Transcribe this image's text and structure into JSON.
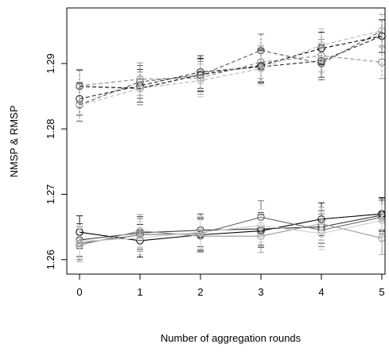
{
  "chart_data": {
    "type": "line",
    "xlabel": "Number of aggregation rounds",
    "ylabel": "NMSP & RMSP",
    "x": [
      0,
      1,
      2,
      3,
      4,
      5
    ],
    "x_ticks": [
      "0",
      "1",
      "2",
      "3",
      "4",
      "5"
    ],
    "y_ticks": [
      "1.26",
      "1.27",
      "1.28",
      "1.29"
    ],
    "y_tick_values": [
      1.26,
      1.27,
      1.28,
      1.29
    ],
    "xlim": [
      0,
      5
    ],
    "ylim": [
      1.259,
      1.2985
    ],
    "grid": false,
    "legend": "none",
    "error_bar_half_width": 0.0025,
    "series": [
      {
        "group": "upper",
        "style": "dashed",
        "color": "#000000",
        "values": [
          1.2865,
          1.2862,
          1.2883,
          1.2897,
          1.2923,
          1.2942
        ]
      },
      {
        "group": "upper",
        "style": "dashed",
        "color": "#222222",
        "values": [
          1.2846,
          1.2866,
          1.2887,
          1.2895,
          1.2904,
          1.2942
        ]
      },
      {
        "group": "upper",
        "style": "dashed",
        "color": "#555555",
        "values": [
          1.2837,
          1.2872,
          1.2882,
          1.292,
          1.29,
          1.295
        ]
      },
      {
        "group": "upper",
        "style": "dashed",
        "color": "#8c8c8c",
        "values": [
          1.2866,
          1.2876,
          1.2878,
          1.2902,
          1.2912,
          1.2902
        ]
      },
      {
        "group": "upper",
        "style": "dashed",
        "color": "#b8b8b8",
        "values": [
          1.2836,
          1.2862,
          1.2874,
          1.2892,
          1.2928,
          1.295
        ]
      },
      {
        "group": "lower",
        "style": "solid",
        "color": "#000000",
        "values": [
          1.2642,
          1.2629,
          1.2638,
          1.2644,
          1.2662,
          1.267
        ]
      },
      {
        "group": "lower",
        "style": "solid",
        "color": "#333333",
        "values": [
          1.263,
          1.2641,
          1.2645,
          1.2647,
          1.265,
          1.2668
        ]
      },
      {
        "group": "lower",
        "style": "solid",
        "color": "#666666",
        "values": [
          1.2625,
          1.2638,
          1.264,
          1.2665,
          1.2645,
          1.2665
        ]
      },
      {
        "group": "lower",
        "style": "solid",
        "color": "#999999",
        "values": [
          1.2622,
          1.2644,
          1.2636,
          1.2636,
          1.2655,
          1.2633
        ]
      },
      {
        "group": "lower",
        "style": "solid",
        "color": "#cccccc",
        "values": [
          1.2628,
          1.2633,
          1.2642,
          1.2652,
          1.264,
          1.266
        ]
      }
    ]
  }
}
